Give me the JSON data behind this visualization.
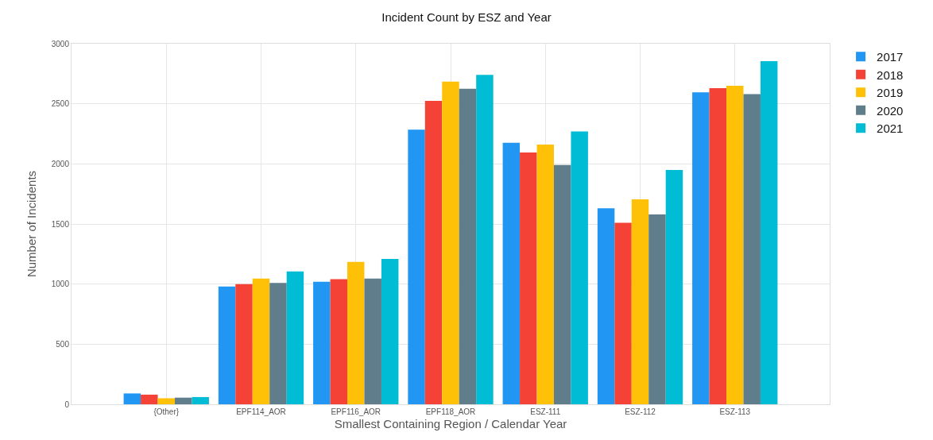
{
  "chart_data": {
    "type": "bar",
    "title": "Incident Count by ESZ and Year",
    "xlabel": "Smallest Containing Region / Calendar Year",
    "ylabel": "Number of Incidents",
    "categories": [
      "{Other}",
      "EPF114_AOR",
      "EPF116_AOR",
      "EPF118_AOR",
      "ESZ-111",
      "ESZ-112",
      "ESZ-113"
    ],
    "series": [
      {
        "name": "2017",
        "color": "#2196f3",
        "values": [
          90,
          980,
          1020,
          2285,
          2175,
          1630,
          2595
        ]
      },
      {
        "name": "2018",
        "color": "#f44336",
        "values": [
          80,
          1000,
          1040,
          2525,
          2095,
          1510,
          2630
        ]
      },
      {
        "name": "2019",
        "color": "#ffc107",
        "values": [
          50,
          1045,
          1185,
          2685,
          2160,
          1705,
          2650
        ]
      },
      {
        "name": "2020",
        "color": "#607d8b",
        "values": [
          55,
          1010,
          1045,
          2625,
          1990,
          1580,
          2580
        ]
      },
      {
        "name": "2021",
        "color": "#00bcd4",
        "values": [
          60,
          1105,
          1210,
          2740,
          2270,
          1950,
          2855
        ]
      }
    ],
    "ylim": [
      0,
      3000
    ],
    "yticks": [
      0,
      500,
      1000,
      1500,
      2000,
      2500,
      3000
    ],
    "grid": true,
    "legend": "top right"
  }
}
